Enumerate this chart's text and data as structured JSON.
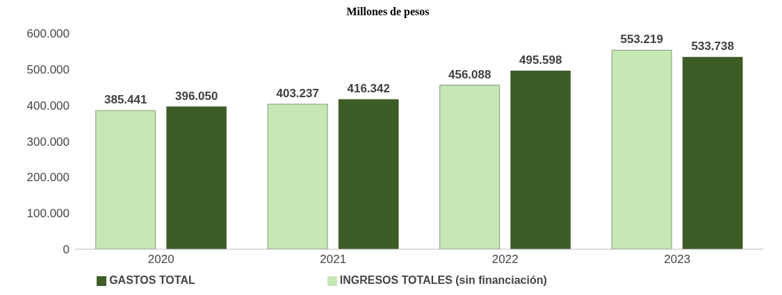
{
  "chart_data": {
    "type": "bar",
    "title": "Millones de pesos",
    "categories": [
      "2020",
      "2021",
      "2022",
      "2023"
    ],
    "series": [
      {
        "name": "INGRESOS TOTALES (sin financiación)",
        "color": "#c6e6b3",
        "values": [
          385441,
          403237,
          456088,
          553219
        ],
        "value_labels": [
          "385.441",
          "403.237",
          "456.088",
          "553.219"
        ]
      },
      {
        "name": "GASTOS TOTAL",
        "color": "#3d5c26",
        "values": [
          396050,
          416342,
          495598,
          533738
        ],
        "value_labels": [
          "396.050",
          "416.342",
          "495.598",
          "533.738"
        ]
      }
    ],
    "ylim": [
      0,
      600000
    ],
    "yticks": [
      {
        "value": 0,
        "label": "0"
      },
      {
        "value": 100000,
        "label": "100.000"
      },
      {
        "value": 200000,
        "label": "200.000"
      },
      {
        "value": 300000,
        "label": "300.000"
      },
      {
        "value": 400000,
        "label": "400.000"
      },
      {
        "value": 500000,
        "label": "500.000"
      },
      {
        "value": 600000,
        "label": "600.000"
      }
    ],
    "grid": false,
    "legend": "bottom"
  }
}
